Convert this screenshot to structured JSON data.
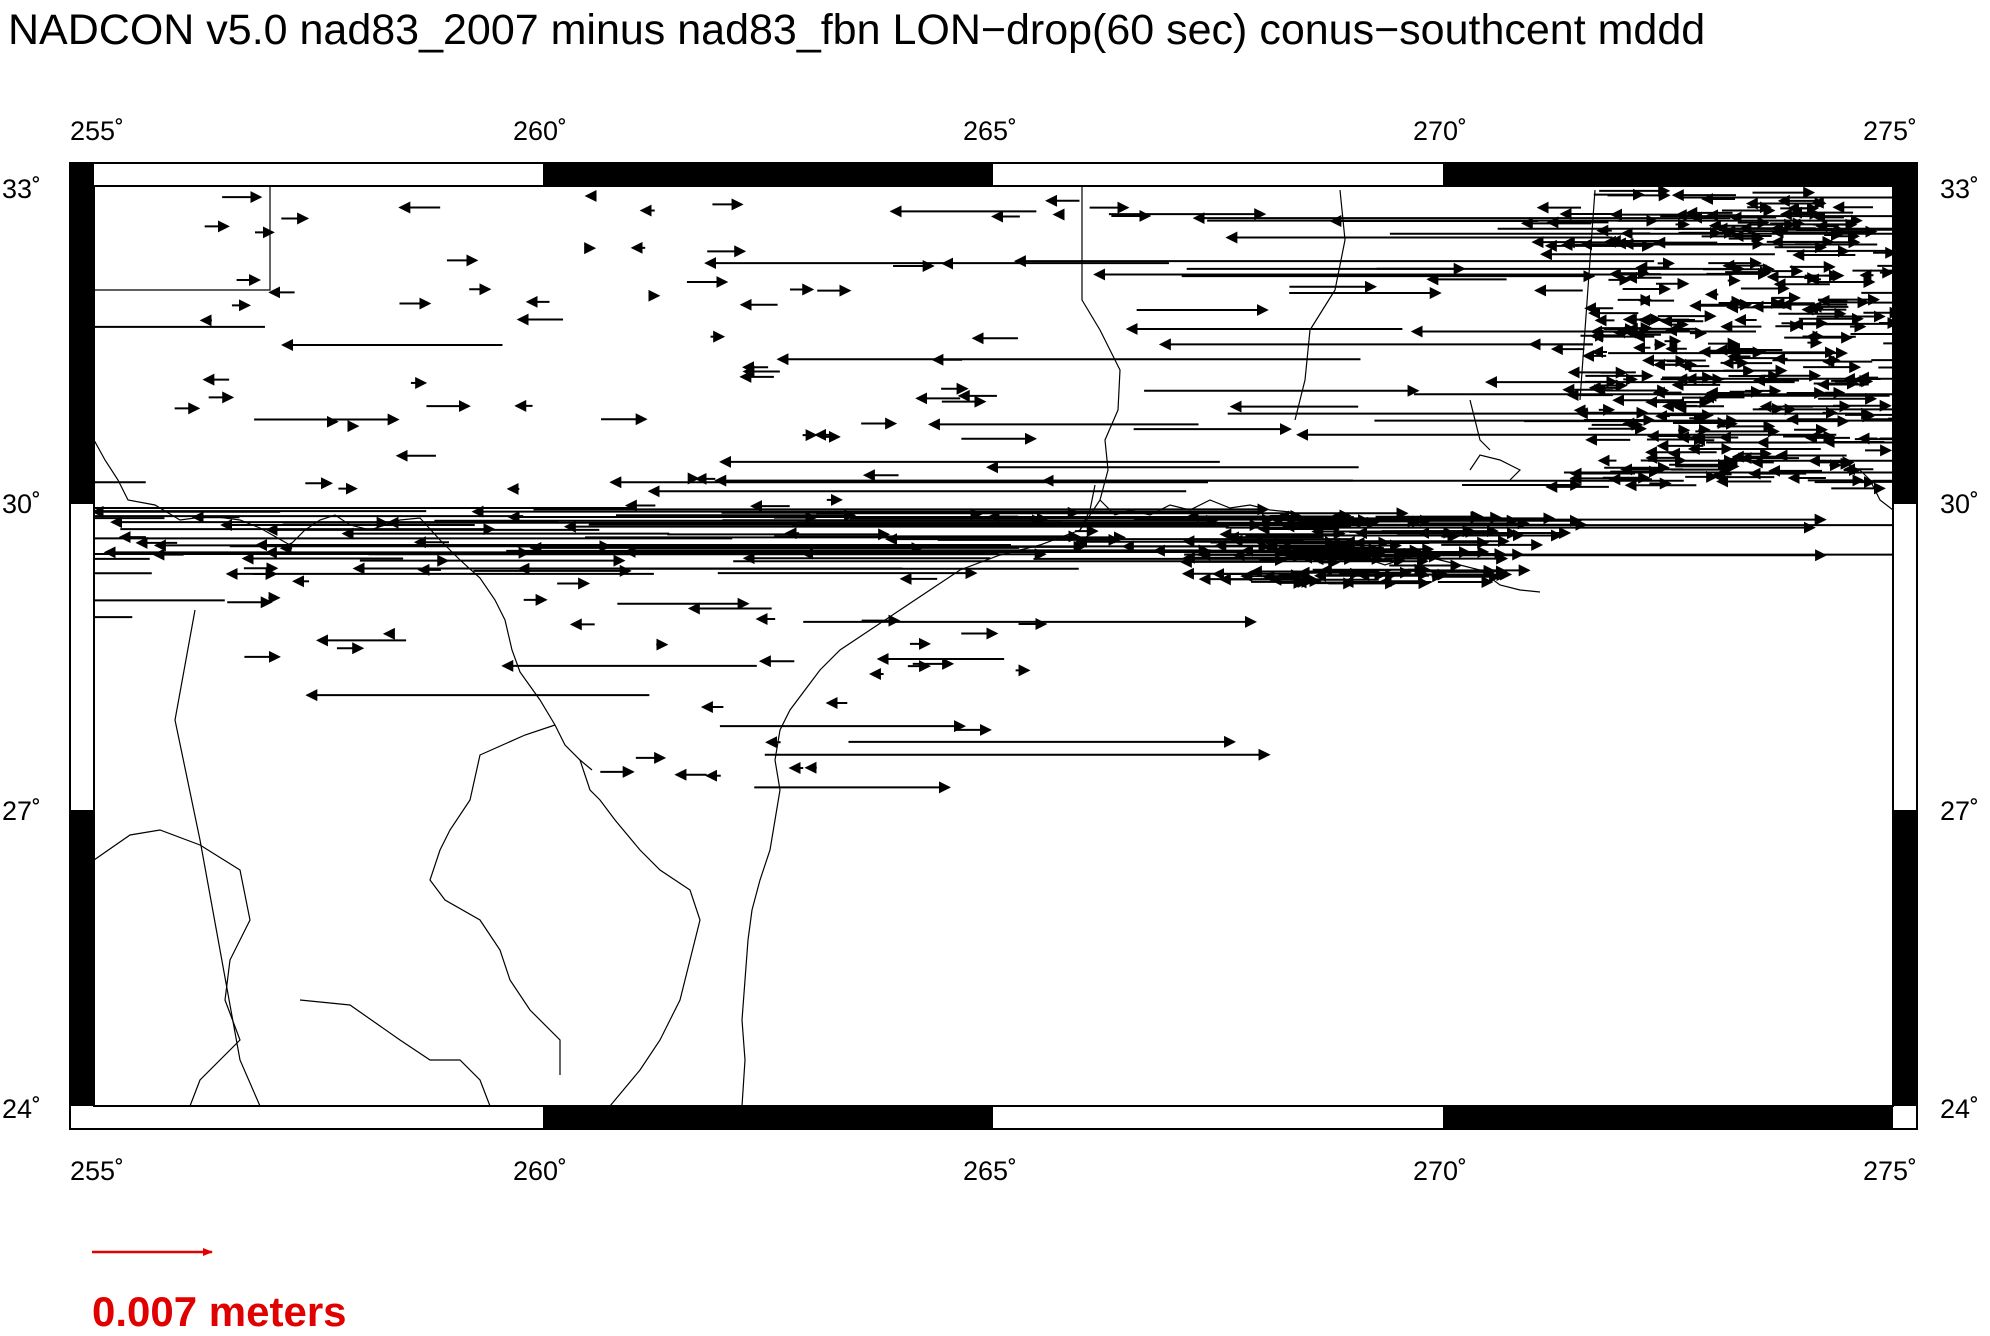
{
  "title": "NADCON v5.0 nad83_2007 minus nad83_fbn LON−drop(60 sec) conus−southcent mddd",
  "map": {
    "lon_range": [
      255,
      275
    ],
    "lat_range": [
      24,
      33
    ],
    "lon_ticks": [
      "255˚",
      "260˚",
      "265˚",
      "270˚",
      "275˚"
    ],
    "lat_ticks": [
      "33˚",
      "30˚",
      "27˚",
      "24˚"
    ],
    "vector_color": "#000000",
    "scale_color": "#e00000"
  },
  "legend": {
    "scale_label": "0.007 meters"
  }
}
